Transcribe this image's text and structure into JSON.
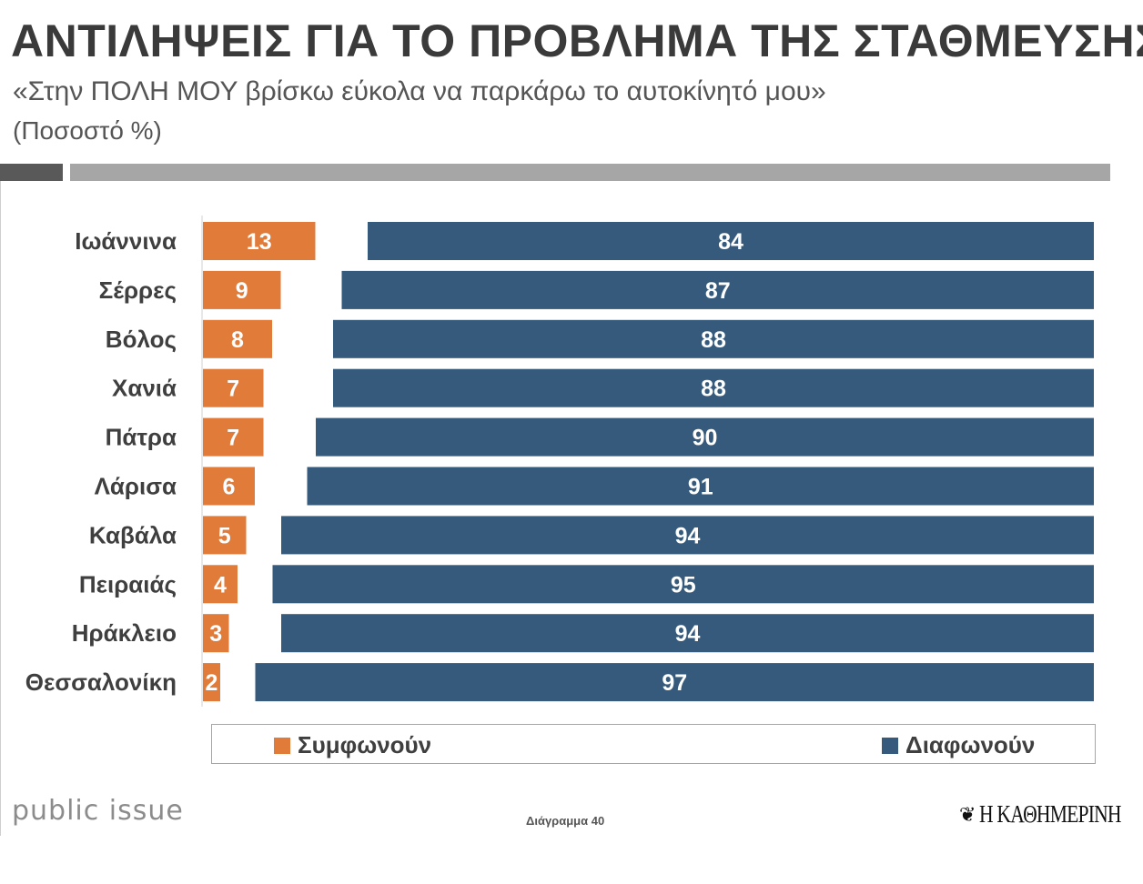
{
  "header": {
    "title": "ΑΝΤΙΛΗΨΕΙΣ ΓΙΑ ΤΟ ΠΡΟΒΛΗΜΑ ΤΗΣ ΣΤΑΘΜΕΥΣΗΣ",
    "subtitle": "«Στην ΠΟΛΗ ΜΟΥ βρίσκω εύκολα να παρκάρω το αυτοκίνητό μου»",
    "unit": "(Ποσοστό %)"
  },
  "chart_data": {
    "type": "bar",
    "orientation": "horizontal",
    "title": "ΑΝΤΙΛΗΨΕΙΣ ΓΙΑ ΤΟ ΠΡΟΒΛΗΜΑ ΤΗΣ ΣΤΑΘΜΕΥΣΗΣ",
    "categories": [
      "Ιωάννινα",
      "Σέρρες",
      "Βόλος",
      "Χανιά",
      "Πάτρα",
      "Λάρισα",
      "Καβάλα",
      "Πειραιάς",
      "Ηράκλειο",
      "Θεσσαλονίκη"
    ],
    "series": [
      {
        "name": "Συμφωνούν",
        "color": "#e07b3a",
        "values": [
          13,
          9,
          8,
          7,
          7,
          6,
          5,
          4,
          3,
          2
        ]
      },
      {
        "name": "Διαφωνούν",
        "color": "#355a7c",
        "values": [
          84,
          87,
          88,
          88,
          90,
          91,
          94,
          95,
          94,
          97
        ]
      }
    ],
    "xlim": [
      0,
      100
    ],
    "data_labels": true,
    "grid": false,
    "legend_position": "bottom"
  },
  "legend": {
    "agree": "Συμφωνούν",
    "disagree": "Διαφωνούν"
  },
  "footer": {
    "brand": "public issue",
    "diagram_label": "Διάγραμμα 40",
    "publisher": "Η ΚΑΘΗΜΕΡΙΝΗ"
  }
}
